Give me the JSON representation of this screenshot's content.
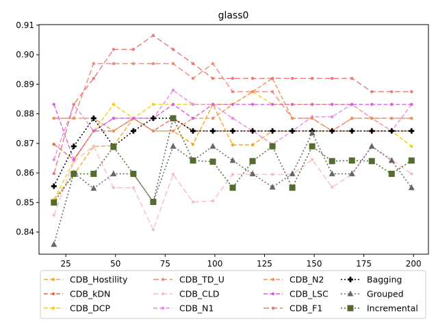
{
  "chart_data": {
    "type": "line",
    "title": "glass0",
    "xlabel": "",
    "ylabel": "",
    "xlim": [
      11.5,
      207.5
    ],
    "ylim": [
      0.8325,
      0.9102
    ],
    "xticks": [
      25,
      50,
      75,
      100,
      125,
      150,
      175,
      200
    ],
    "yticks": [
      0.84,
      0.85,
      0.86,
      0.87,
      0.88,
      0.89,
      0.9,
      0.91
    ],
    "grid": false,
    "legend_position": "bottom-outside",
    "x": [
      19,
      29,
      39,
      49,
      59,
      69,
      79,
      89,
      99,
      109,
      119,
      129,
      139,
      149,
      159,
      169,
      179,
      189,
      199
    ],
    "series": [
      {
        "name": "CDB_Hostility",
        "color": "#f5a623",
        "dash": "6,3",
        "marker": "circle",
        "values": [
          0.851,
          0.8595,
          0.869,
          0.8692,
          0.8785,
          0.8742,
          0.8742,
          0.8697,
          0.8832,
          0.8695,
          0.8695,
          0.8742,
          0.8742,
          0.8742,
          0.8742,
          0.8742,
          0.8742,
          0.8742,
          0.8742
        ]
      },
      {
        "name": "CDB_kDN",
        "color": "#ec6a4c",
        "dash": "6,3",
        "marker": "circle",
        "values": [
          0.8697,
          0.8645,
          0.8742,
          0.8742,
          0.8785,
          0.8742,
          0.8785,
          0.8742,
          0.8742,
          0.8742,
          0.8742,
          0.8742,
          0.8742,
          0.8742,
          0.8742,
          0.8742,
          0.8742,
          0.8742,
          0.8742
        ]
      },
      {
        "name": "CDB_DCP",
        "color": "#f5d00a",
        "dash": "6,3",
        "marker": "circle",
        "values": [
          0.851,
          0.864,
          0.8742,
          0.8832,
          0.8785,
          0.8832,
          0.8832,
          0.8832,
          0.8832,
          0.8832,
          0.8875,
          0.8832,
          0.8832,
          0.8832,
          0.8832,
          0.8832,
          0.8785,
          0.8742,
          0.869
        ]
      },
      {
        "name": "CDB_TD_U",
        "color": "#f08878",
        "dash": "8,4",
        "marker": "circle",
        "values": [
          0.8785,
          0.8785,
          0.897,
          0.897,
          0.897,
          0.897,
          0.897,
          0.892,
          0.897,
          0.8875,
          0.8875,
          0.8875,
          0.8785,
          0.8785,
          0.8742,
          0.8785,
          0.8785,
          0.8785,
          0.8785
        ]
      },
      {
        "name": "CDB_CLD",
        "color": "#f8bcc8",
        "dash": "8,4",
        "marker": "circle",
        "values": [
          0.8457,
          0.8638,
          0.869,
          0.855,
          0.855,
          0.8408,
          0.8595,
          0.8502,
          0.8505,
          0.8595,
          0.8595,
          0.8595,
          0.8595,
          0.8645,
          0.8552,
          0.8595,
          0.869,
          0.8645,
          0.8597
        ]
      },
      {
        "name": "CDB_N1",
        "color": "#ee88e8",
        "dash": "6,3",
        "marker": "circle",
        "values": [
          0.8645,
          0.8832,
          0.8742,
          0.8785,
          0.8785,
          0.8785,
          0.888,
          0.8832,
          0.8832,
          0.8785,
          0.8742,
          0.8697,
          0.8742,
          0.879,
          0.879,
          0.8832,
          0.8785,
          0.8742,
          0.8832
        ]
      },
      {
        "name": "CDB_N2",
        "color": "#f0905c",
        "dash": "6,3",
        "marker": "circle",
        "values": [
          0.8785,
          0.8785,
          0.8785,
          0.8742,
          0.8785,
          0.8742,
          0.8742,
          0.8785,
          0.8785,
          0.8832,
          0.8875,
          0.892,
          0.8785,
          0.8785,
          0.8742,
          0.8785,
          0.8785,
          0.8785,
          0.8785
        ]
      },
      {
        "name": "CDB_LSC",
        "color": "#d860e0",
        "dash": "6,3",
        "marker": "circle",
        "values": [
          0.8832,
          0.8645,
          0.8742,
          0.8785,
          0.8785,
          0.8785,
          0.8832,
          0.8785,
          0.8832,
          0.8832,
          0.8832,
          0.8832,
          0.8832,
          0.8832,
          0.8832,
          0.8832,
          0.8832,
          0.8832,
          0.8832
        ]
      },
      {
        "name": "CDB_F1",
        "color": "#ec7878",
        "dash": "8,4",
        "marker": "circle",
        "values": [
          0.8598,
          0.8832,
          0.892,
          0.9018,
          0.9018,
          0.9065,
          0.9018,
          0.897,
          0.892,
          0.892,
          0.892,
          0.892,
          0.892,
          0.892,
          0.892,
          0.892,
          0.8875,
          0.8875,
          0.8875
        ]
      },
      {
        "name": "Bagging",
        "color": "#000000",
        "dash": "2,3",
        "marker": "plus",
        "values": [
          0.8555,
          0.869,
          0.8785,
          0.869,
          0.8742,
          0.8785,
          0.8785,
          0.8742,
          0.8742,
          0.8742,
          0.8742,
          0.8742,
          0.8742,
          0.8742,
          0.8742,
          0.8742,
          0.8742,
          0.8742,
          0.8742
        ]
      },
      {
        "name": "Grouped",
        "color": "#666666",
        "dash": "2,3",
        "marker": "triangle",
        "values": [
          0.8358,
          0.86,
          0.8548,
          0.8597,
          0.8597,
          0.8502,
          0.869,
          0.8642,
          0.869,
          0.8642,
          0.8597,
          0.8552,
          0.8597,
          0.8735,
          0.8597,
          0.8597,
          0.869,
          0.8642,
          0.855
        ]
      },
      {
        "name": "Incremental",
        "color": "#556b2f",
        "dash": "2,3",
        "marker": "square",
        "values": [
          0.85,
          0.8597,
          0.8597,
          0.8688,
          0.8597,
          0.8502,
          0.8785,
          0.8642,
          0.8638,
          0.855,
          0.864,
          0.869,
          0.855,
          0.869,
          0.864,
          0.8642,
          0.864,
          0.8597,
          0.8642
        ]
      }
    ]
  }
}
